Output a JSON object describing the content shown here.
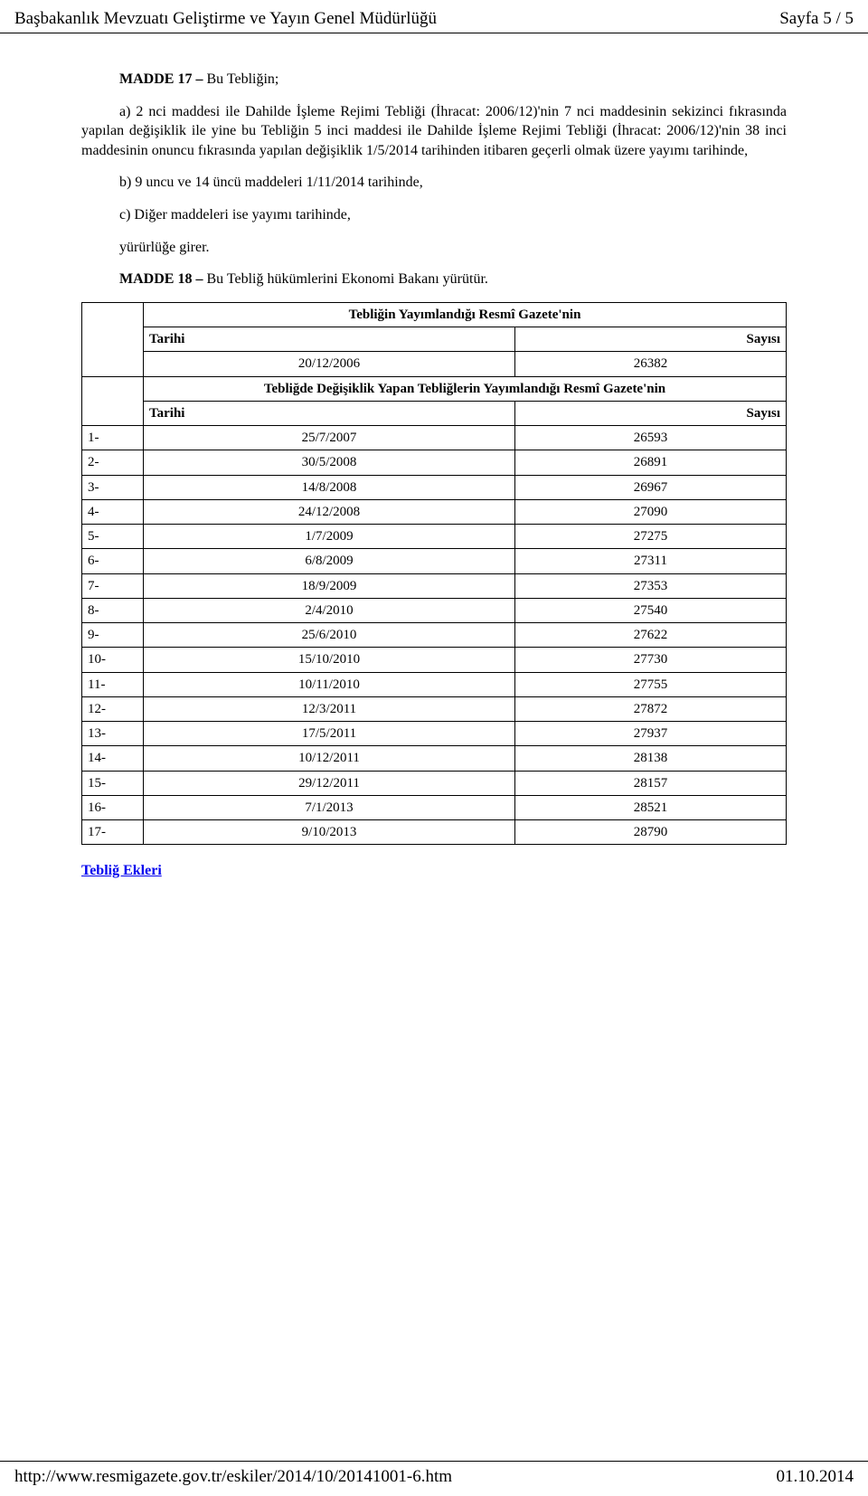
{
  "header": {
    "left": "Başbakanlık Mevzuatı Geliştirme ve Yayın Genel Müdürlüğü",
    "right": "Sayfa 5 / 5"
  },
  "body": {
    "madde17_title": "MADDE 17 – ",
    "madde17_intro": "Bu Tebliğin;",
    "para_a": "a) 2 nci maddesi ile Dahilde İşleme Rejimi Tebliği (İhracat: 2006/12)'nin 7 nci maddesinin sekizinci fıkrasında yapılan değişiklik ile yine bu Tebliğin 5 inci maddesi ile Dahilde İşleme Rejimi Tebliği (İhracat: 2006/12)'nin 38 inci maddesinin onuncu fıkrasında yapılan değişiklik 1/5/2014 tarihinden itibaren geçerli olmak üzere yayımı tarihinde,",
    "para_b": "b) 9 uncu ve 14 üncü maddeleri 1/11/2014 tarihinde,",
    "para_c": "c) Diğer maddeleri ise yayımı tarihinde,",
    "para_yur": "yürürlüğe girer.",
    "madde18_title": "MADDE 18 – ",
    "madde18_text": "Bu Tebliğ hükümlerini Ekonomi Bakanı yürütür."
  },
  "table": {
    "section1_title": "Tebliğin Yayımlandığı Resmî Gazete'nin",
    "section2_title": "Tebliğde Değişiklik Yapan Tebliğlerin Yayımlandığı Resmî Gazete'nin",
    "col_tarihi": "Tarihi",
    "col_sayisi": "Sayısı",
    "pub": {
      "date": "20/12/2006",
      "num": "26382"
    },
    "rows": [
      {
        "idx": "1-",
        "date": "25/7/2007",
        "num": "26593"
      },
      {
        "idx": "2-",
        "date": "30/5/2008",
        "num": "26891"
      },
      {
        "idx": "3-",
        "date": "14/8/2008",
        "num": "26967"
      },
      {
        "idx": "4-",
        "date": "24/12/2008",
        "num": "27090"
      },
      {
        "idx": "5-",
        "date": "1/7/2009",
        "num": "27275"
      },
      {
        "idx": "6-",
        "date": "6/8/2009",
        "num": "27311"
      },
      {
        "idx": "7-",
        "date": "18/9/2009",
        "num": "27353"
      },
      {
        "idx": "8-",
        "date": "2/4/2010",
        "num": "27540"
      },
      {
        "idx": "9-",
        "date": "25/6/2010",
        "num": "27622"
      },
      {
        "idx": "10-",
        "date": "15/10/2010",
        "num": "27730"
      },
      {
        "idx": "11-",
        "date": "10/11/2010",
        "num": "27755"
      },
      {
        "idx": "12-",
        "date": "12/3/2011",
        "num": "27872"
      },
      {
        "idx": "13-",
        "date": "17/5/2011",
        "num": "27937"
      },
      {
        "idx": "14-",
        "date": "10/12/2011",
        "num": "28138"
      },
      {
        "idx": "15-",
        "date": "29/12/2011",
        "num": "28157"
      },
      {
        "idx": "16-",
        "date": "7/1/2013",
        "num": "28521"
      },
      {
        "idx": "17-",
        "date": "9/10/2013",
        "num": "28790"
      }
    ]
  },
  "attachments_link": "Tebliğ Ekleri",
  "footer": {
    "url": "http://www.resmigazete.gov.tr/eskiler/2014/10/20141001-6.htm",
    "date": "01.10.2014"
  }
}
